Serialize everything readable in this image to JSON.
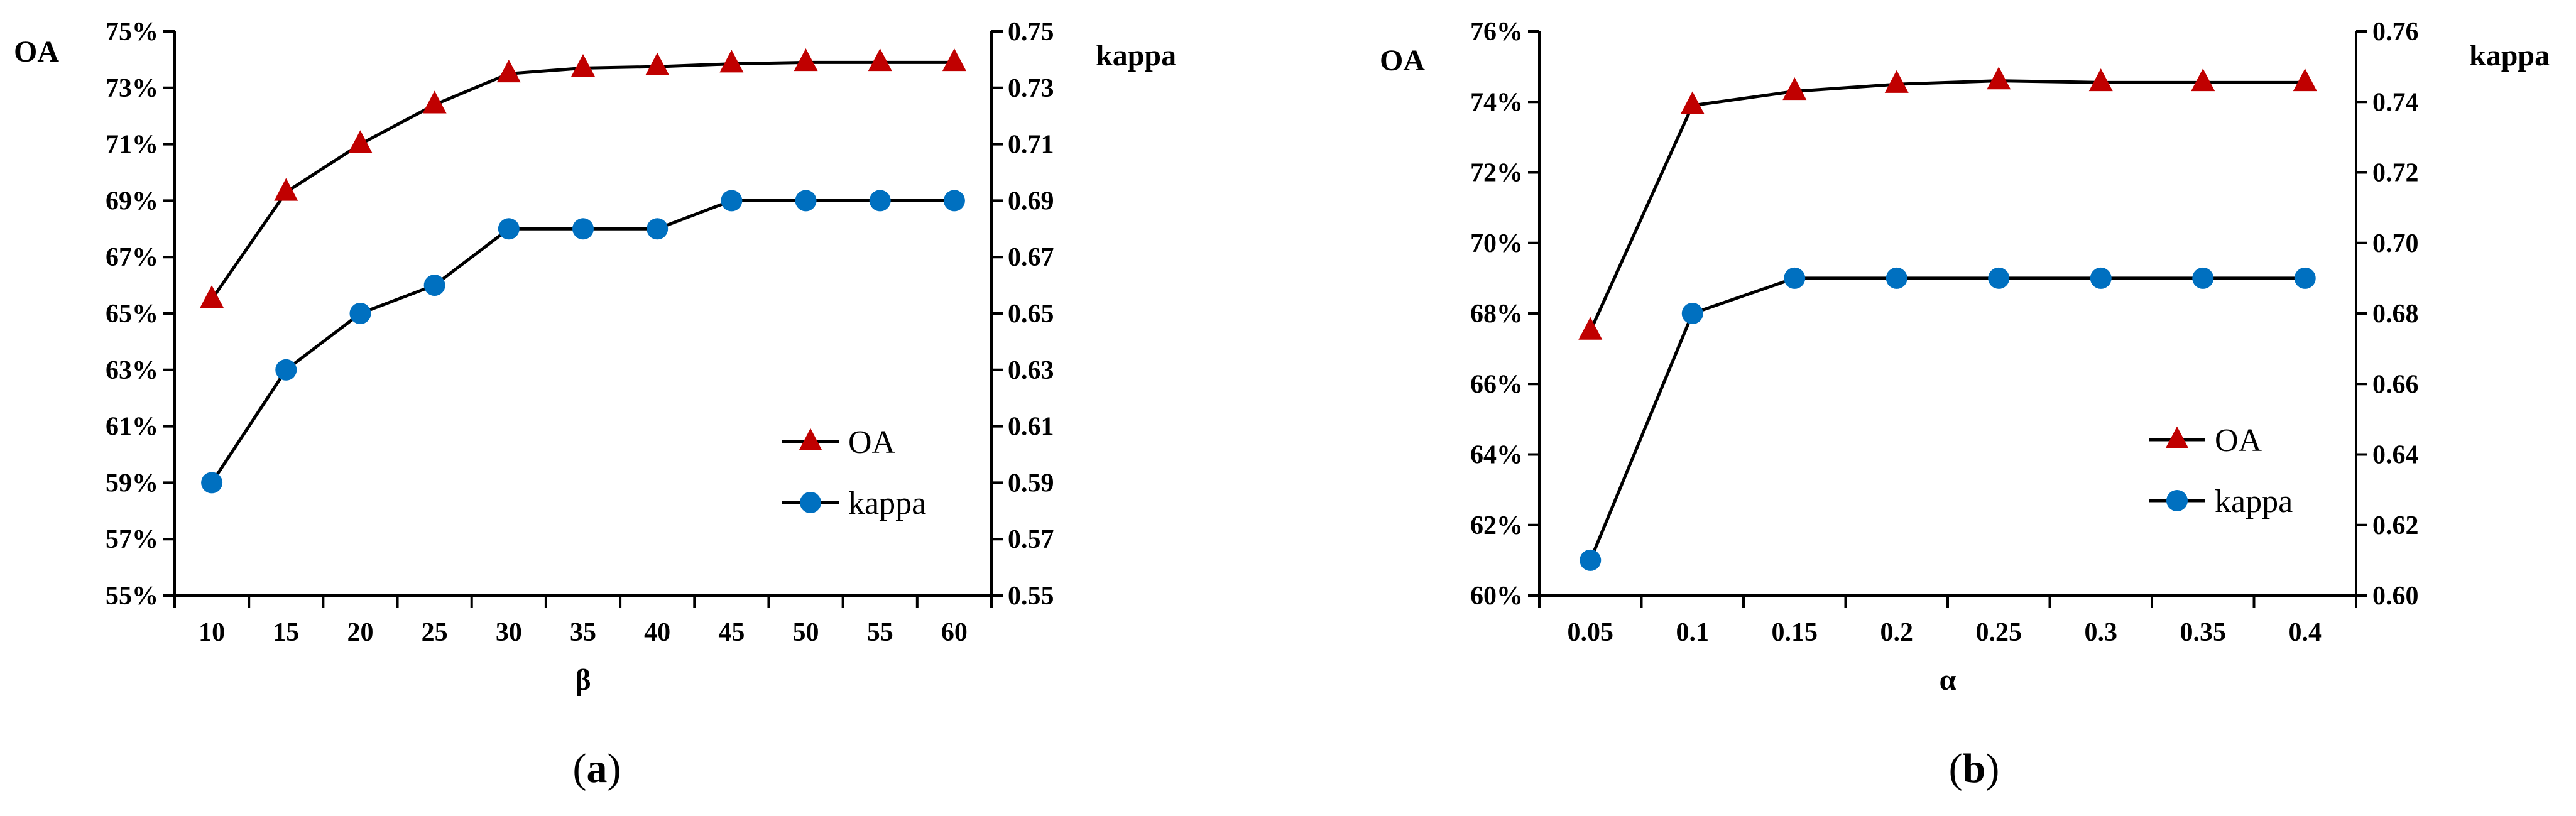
{
  "chart_data": [
    {
      "type": "line",
      "caption": "a",
      "xlabel": "β",
      "ylabel_left": "OA",
      "ylabel_right": "kappa",
      "categories": [
        "10",
        "15",
        "20",
        "25",
        "30",
        "35",
        "40",
        "45",
        "50",
        "55",
        "60"
      ],
      "ylim_left": [
        55,
        75
      ],
      "yticks_left": [
        "55%",
        "57%",
        "59%",
        "61%",
        "63%",
        "65%",
        "67%",
        "69%",
        "71%",
        "73%",
        "75%"
      ],
      "ylim_right": [
        0.55,
        0.75
      ],
      "yticks_right": [
        "0.55",
        "0.57",
        "0.59",
        "0.61",
        "0.63",
        "0.65",
        "0.67",
        "0.69",
        "0.71",
        "0.73",
        "0.75"
      ],
      "series": [
        {
          "name": "OA",
          "axis": "left",
          "marker": "triangle",
          "color": "#c00000",
          "values": [
            65.5,
            69.3,
            71.0,
            72.4,
            73.5,
            73.7,
            73.75,
            73.85,
            73.9,
            73.9,
            73.9
          ]
        },
        {
          "name": "kappa",
          "axis": "right",
          "marker": "circle",
          "color": "#0070c0",
          "values": [
            0.59,
            0.63,
            0.65,
            0.66,
            0.68,
            0.68,
            0.68,
            0.69,
            0.69,
            0.69,
            0.69
          ]
        }
      ],
      "legend": [
        "OA",
        "kappa"
      ],
      "legend_position": "bottom-right",
      "grid": false
    },
    {
      "type": "line",
      "caption": "b",
      "xlabel": "α",
      "ylabel_left": "OA",
      "ylabel_right": "kappa",
      "categories": [
        "0.05",
        "0.1",
        "0.15",
        "0.2",
        "0.25",
        "0.3",
        "0.35",
        "0.4"
      ],
      "ylim_left": [
        60,
        76
      ],
      "yticks_left": [
        "60%",
        "62%",
        "64%",
        "66%",
        "68%",
        "70%",
        "72%",
        "74%",
        "76%"
      ],
      "ylim_right": [
        0.6,
        0.76
      ],
      "yticks_right": [
        "0.60",
        "0.62",
        "0.64",
        "0.66",
        "0.68",
        "0.70",
        "0.72",
        "0.74",
        "0.76"
      ],
      "series": [
        {
          "name": "OA",
          "axis": "left",
          "marker": "triangle",
          "color": "#c00000",
          "values": [
            67.5,
            73.9,
            74.3,
            74.5,
            74.6,
            74.55,
            74.55,
            74.55
          ]
        },
        {
          "name": "kappa",
          "axis": "right",
          "marker": "circle",
          "color": "#0070c0",
          "values": [
            0.61,
            0.68,
            0.69,
            0.69,
            0.69,
            0.69,
            0.69,
            0.69
          ]
        }
      ],
      "legend": [
        "OA",
        "kappa"
      ],
      "legend_position": "bottom-right",
      "grid": false
    }
  ]
}
